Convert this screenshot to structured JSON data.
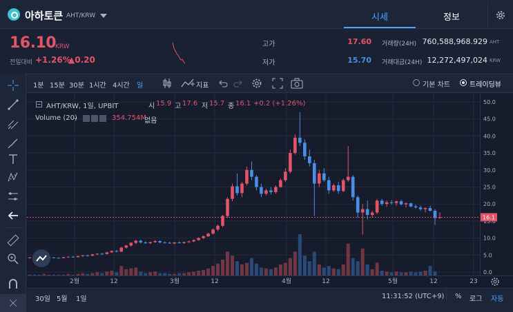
{
  "header": {
    "coin_name": "아하토큰",
    "pair": "AHT/KRW",
    "tabs": [
      "시세",
      "정보"
    ]
  },
  "summary": {
    "price": "16.10",
    "price_unit": "KRW",
    "change_label": "전일대비",
    "change_pct": "+1.26%",
    "change_abs": "▲0.20",
    "high_label": "고가",
    "high_value": "17.60",
    "low_label": "저가",
    "low_value": "15.70",
    "volume_label": "거래량(24H)",
    "volume_value": "760,588,968.929",
    "volume_unit": "AHT",
    "amount_label": "거래대금(24H)",
    "amount_value": "12,272,497,024",
    "amount_unit": "KRW"
  },
  "toolbar": {
    "intervals": [
      "1분",
      "15분",
      "30분",
      "1시간",
      "4시간",
      "일"
    ],
    "indicator_label": "지표",
    "basic_chart": "기본 차트",
    "trading_view": "트레이딩뷰"
  },
  "legend": {
    "symbol": "AHT/KRW, 1일, UPBIT",
    "open_label": "시",
    "open": "15.9",
    "high_label": "고",
    "high": "17.6",
    "low_label": "저",
    "low": "15.7",
    "close_label": "종",
    "close": "16.1",
    "change": "+0.2 (+1.26%)",
    "volume_label": "Volume (20)",
    "volume_value": "354.754M",
    "volume_extra": "없음"
  },
  "chart_data": {
    "type": "candlestick",
    "y_ticks": [
      "50.0",
      "45.0",
      "40.0",
      "35.0",
      "30.0",
      "25.0",
      "20.0",
      "15.0",
      "10.0",
      "5.0",
      "0.0"
    ],
    "ylim": [
      0,
      50
    ],
    "x_ticks": [
      "2월",
      "12",
      "3월",
      "12",
      "4월",
      "12",
      "5월",
      "12",
      "23"
    ],
    "last_price_label": "16.1",
    "ohlc": [
      [
        4.2,
        4.4,
        4.0,
        4.3
      ],
      [
        4.3,
        4.5,
        4.1,
        4.2
      ],
      [
        4.2,
        4.3,
        4.0,
        4.1
      ],
      [
        4.1,
        4.3,
        3.9,
        4.2
      ],
      [
        4.2,
        4.4,
        4.1,
        4.3
      ],
      [
        4.3,
        4.4,
        4.1,
        4.2
      ],
      [
        4.2,
        4.3,
        4.0,
        4.1
      ],
      [
        4.1,
        4.4,
        4.0,
        4.4
      ],
      [
        4.4,
        4.6,
        4.2,
        4.5
      ],
      [
        4.5,
        4.7,
        4.3,
        4.4
      ],
      [
        4.4,
        4.8,
        4.3,
        4.7
      ],
      [
        4.7,
        5.0,
        4.5,
        4.9
      ],
      [
        4.9,
        5.1,
        4.6,
        4.8
      ],
      [
        4.8,
        5.3,
        4.7,
        5.2
      ],
      [
        5.2,
        5.5,
        5.0,
        5.4
      ],
      [
        5.4,
        5.6,
        5.1,
        5.3
      ],
      [
        5.3,
        5.9,
        5.2,
        5.8
      ],
      [
        5.8,
        6.4,
        5.6,
        6.2
      ],
      [
        6.2,
        6.5,
        5.8,
        6.0
      ],
      [
        6.0,
        7.4,
        5.9,
        7.2
      ],
      [
        7.2,
        8.0,
        6.9,
        7.8
      ],
      [
        7.8,
        8.8,
        7.5,
        8.6
      ],
      [
        8.6,
        9.5,
        8.2,
        9.2
      ],
      [
        9.2,
        9.5,
        8.4,
        8.7
      ],
      [
        8.7,
        9.0,
        8.3,
        8.5
      ],
      [
        8.5,
        8.9,
        8.2,
        8.8
      ],
      [
        8.8,
        9.4,
        8.6,
        9.1
      ],
      [
        9.1,
        9.3,
        8.5,
        8.7
      ],
      [
        8.7,
        9.0,
        8.4,
        8.6
      ],
      [
        8.6,
        8.9,
        8.3,
        8.4
      ],
      [
        8.4,
        8.8,
        8.2,
        8.7
      ],
      [
        8.7,
        9.0,
        8.4,
        8.5
      ],
      [
        8.5,
        8.9,
        8.3,
        8.8
      ],
      [
        8.8,
        9.2,
        8.6,
        9.0
      ],
      [
        9.0,
        9.6,
        8.8,
        9.4
      ],
      [
        9.4,
        10.2,
        9.2,
        10.0
      ],
      [
        10.0,
        10.8,
        9.7,
        10.5
      ],
      [
        10.5,
        11.5,
        10.3,
        11.3
      ],
      [
        11.3,
        12.8,
        11.0,
        12.5
      ],
      [
        12.5,
        14.0,
        12.0,
        13.6
      ],
      [
        13.6,
        16.8,
        13.2,
        16.5
      ],
      [
        16.5,
        22.0,
        16.0,
        21.5
      ],
      [
        21.5,
        26.0,
        20.8,
        25.2
      ],
      [
        25.2,
        29.0,
        22.5,
        23.2
      ],
      [
        23.2,
        26.5,
        22.0,
        26.0
      ],
      [
        26.0,
        31.0,
        25.5,
        30.0
      ],
      [
        30.0,
        32.5,
        27.0,
        28.0
      ],
      [
        28.0,
        28.5,
        24.0,
        25.0
      ],
      [
        25.0,
        26.0,
        22.0,
        23.0
      ],
      [
        23.0,
        24.5,
        22.5,
        24.0
      ],
      [
        24.0,
        25.0,
        22.8,
        23.5
      ],
      [
        23.5,
        25.5,
        23.0,
        25.0
      ],
      [
        25.0,
        27.5,
        24.8,
        27.0
      ],
      [
        27.0,
        30.5,
        26.5,
        29.5
      ],
      [
        29.5,
        36.0,
        29.0,
        35.0
      ],
      [
        35.0,
        40.5,
        34.5,
        39.5
      ],
      [
        39.5,
        47.0,
        37.0,
        38.0
      ],
      [
        38.0,
        39.0,
        33.0,
        34.0
      ],
      [
        34.0,
        36.0,
        31.0,
        32.0
      ],
      [
        32.0,
        33.0,
        16.5,
        26.0
      ],
      [
        26.0,
        30.0,
        25.0,
        29.0
      ],
      [
        29.0,
        30.5,
        26.5,
        27.0
      ],
      [
        27.0,
        28.0,
        23.0,
        24.0
      ],
      [
        24.0,
        26.0,
        23.5,
        25.5
      ],
      [
        25.5,
        26.5,
        23.0,
        23.8
      ],
      [
        23.8,
        27.5,
        23.5,
        27.0
      ],
      [
        27.0,
        37.0,
        26.5,
        28.0
      ],
      [
        28.0,
        28.5,
        21.0,
        22.0
      ],
      [
        22.0,
        22.5,
        16.0,
        17.5
      ],
      [
        17.5,
        20.0,
        11.0,
        18.5
      ],
      [
        18.5,
        21.0,
        15.5,
        16.8
      ],
      [
        16.8,
        18.0,
        16.0,
        17.5
      ],
      [
        17.5,
        21.5,
        17.0,
        21.0
      ],
      [
        21.0,
        21.5,
        19.5,
        20.0
      ],
      [
        20.0,
        21.0,
        19.2,
        20.5
      ],
      [
        20.5,
        21.2,
        19.8,
        20.3
      ],
      [
        20.3,
        21.0,
        19.5,
        20.8
      ],
      [
        20.8,
        21.2,
        19.6,
        19.9
      ],
      [
        19.9,
        20.5,
        19.0,
        20.2
      ],
      [
        20.2,
        20.4,
        19.0,
        19.3
      ],
      [
        19.3,
        19.8,
        18.6,
        19.0
      ],
      [
        19.0,
        19.5,
        18.0,
        18.5
      ],
      [
        18.5,
        19.0,
        17.5,
        18.8
      ],
      [
        18.8,
        19.5,
        17.8,
        18.0
      ],
      [
        18.0,
        18.5,
        13.8,
        15.9
      ],
      [
        15.9,
        17.6,
        15.7,
        16.1
      ]
    ],
    "volume": [
      1,
      1,
      1,
      2,
      1,
      1,
      1,
      1,
      2,
      1,
      2,
      3,
      2,
      3,
      4,
      3,
      5,
      6,
      4,
      12,
      8,
      9,
      10,
      5,
      3,
      4,
      5,
      3,
      3,
      2,
      2,
      3,
      3,
      4,
      5,
      6,
      7,
      9,
      12,
      15,
      20,
      30,
      25,
      18,
      14,
      16,
      22,
      15,
      10,
      9,
      8,
      10,
      14,
      16,
      22,
      30,
      52,
      25,
      18,
      30,
      14,
      10,
      12,
      9,
      8,
      14,
      40,
      22,
      18,
      34,
      14,
      8,
      16,
      6,
      5,
      4,
      5,
      4,
      4,
      5,
      4,
      5,
      6,
      12,
      5
    ]
  },
  "bottom": {
    "ranges": [
      "30일",
      "5월",
      "1일"
    ],
    "time": "11:31:52 (UTC+9)",
    "percent": "%",
    "log": "로그",
    "auto": "자동"
  },
  "colors": {
    "up": "#e2546a",
    "down": "#4a8fe7",
    "accent": "#4da3ff"
  }
}
